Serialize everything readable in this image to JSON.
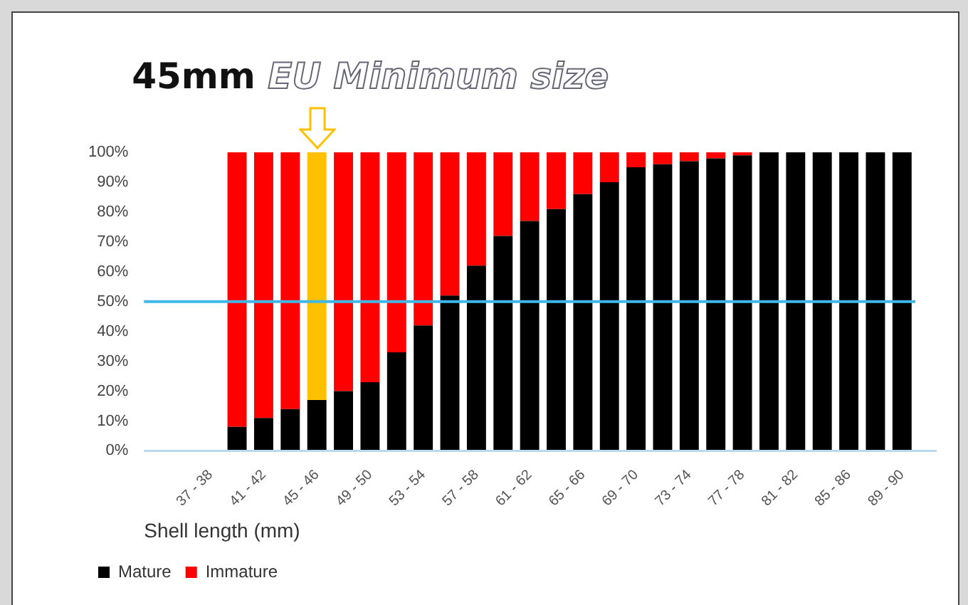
{
  "chart_data": {
    "type": "bar",
    "stacked": true,
    "title": "45mm EU Minimum size",
    "xlabel": "Shell length (mm)",
    "categories": [
      null,
      null,
      "37 - 38",
      null,
      "41 - 42",
      null,
      "45 - 46",
      null,
      "49 - 50",
      null,
      "53 - 54",
      null,
      "57 - 58",
      null,
      "61 - 62",
      null,
      "65 - 66",
      null,
      "69 - 70",
      null,
      "73 - 74",
      null,
      "77 - 78",
      null,
      "81 - 82",
      null,
      "85 - 86",
      null,
      "89 - 90"
    ],
    "series": [
      {
        "name": "Mature",
        "color": "#000000",
        "values": [
          null,
          null,
          null,
          8,
          11,
          14,
          17,
          20,
          23,
          33,
          42,
          52,
          62,
          72,
          77,
          81,
          86,
          90,
          95,
          96,
          97,
          98,
          99,
          100,
          100,
          100,
          100,
          100,
          100
        ]
      },
      {
        "name": "Immature",
        "color": "#ff0000",
        "colors": [
          "#ff0000",
          "#ff0000",
          "#ff0000",
          "#ff0000",
          "#ff0000",
          "#ff0000",
          "#ffc000",
          "#ff0000",
          "#ff0000",
          "#ff0000",
          "#ff0000",
          "#ff0000",
          "#ff0000",
          "#ff0000",
          "#ff0000",
          "#ff0000",
          "#ff0000",
          "#ff0000",
          "#ff0000",
          "#ff0000",
          "#ff0000",
          "#ff0000",
          "#ff0000",
          "#ff0000",
          "#ff0000",
          "#ff0000",
          "#ff0000",
          "#ff0000",
          "#ff0000"
        ],
        "values": [
          null,
          null,
          null,
          92,
          89,
          86,
          83,
          80,
          77,
          67,
          58,
          48,
          38,
          28,
          23,
          19,
          14,
          10,
          5,
          4,
          3,
          2,
          1,
          0,
          0,
          0,
          0,
          0,
          0
        ]
      }
    ],
    "ylim": [
      0,
      100
    ],
    "yticks": [
      {
        "value": 0,
        "label": "0%"
      },
      {
        "value": 10,
        "label": "10%"
      },
      {
        "value": 20,
        "label": "20%"
      },
      {
        "value": 30,
        "label": "30%"
      },
      {
        "value": 40,
        "label": "40%"
      },
      {
        "value": 50,
        "label": "50%"
      },
      {
        "value": 60,
        "label": "60%"
      },
      {
        "value": 70,
        "label": "70%"
      },
      {
        "value": 80,
        "label": "80%"
      },
      {
        "value": 90,
        "label": "90%"
      },
      {
        "value": 100,
        "label": "100%"
      }
    ],
    "ref_lines": [
      {
        "axis": "y",
        "value": 50,
        "color": "#3fb8e8"
      }
    ],
    "grid": false,
    "legend": "bottom left"
  }
}
